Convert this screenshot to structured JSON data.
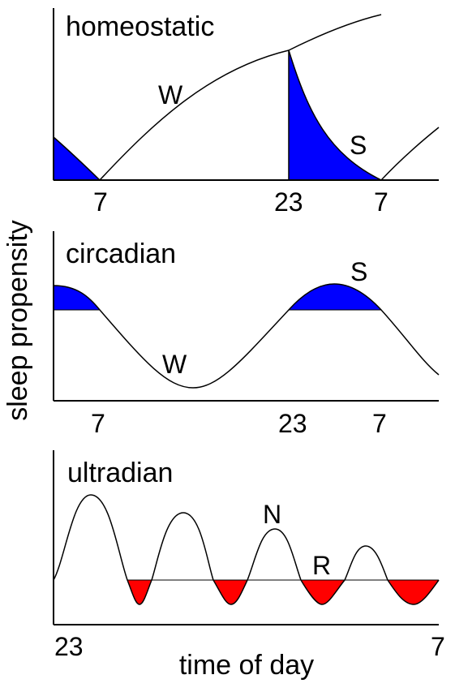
{
  "ylabel": "sleep propensity",
  "xlabel": "time of day",
  "colors": {
    "sleep_fill": "#0000ff",
    "rem_fill": "#ff0000",
    "line": "#000000"
  },
  "panels": {
    "homeostatic": {
      "title": "homeostatic",
      "wake_label": "W",
      "sleep_label": "S",
      "ticks": [
        "7",
        "23",
        "7"
      ]
    },
    "circadian": {
      "title": "circadian",
      "wake_label": "W",
      "sleep_label": "S",
      "ticks": [
        "7",
        "23",
        "7"
      ]
    },
    "ultradian": {
      "title": "ultradian",
      "nrem_label": "N",
      "rem_label": "R",
      "ticks": [
        "23",
        "7"
      ]
    }
  }
}
